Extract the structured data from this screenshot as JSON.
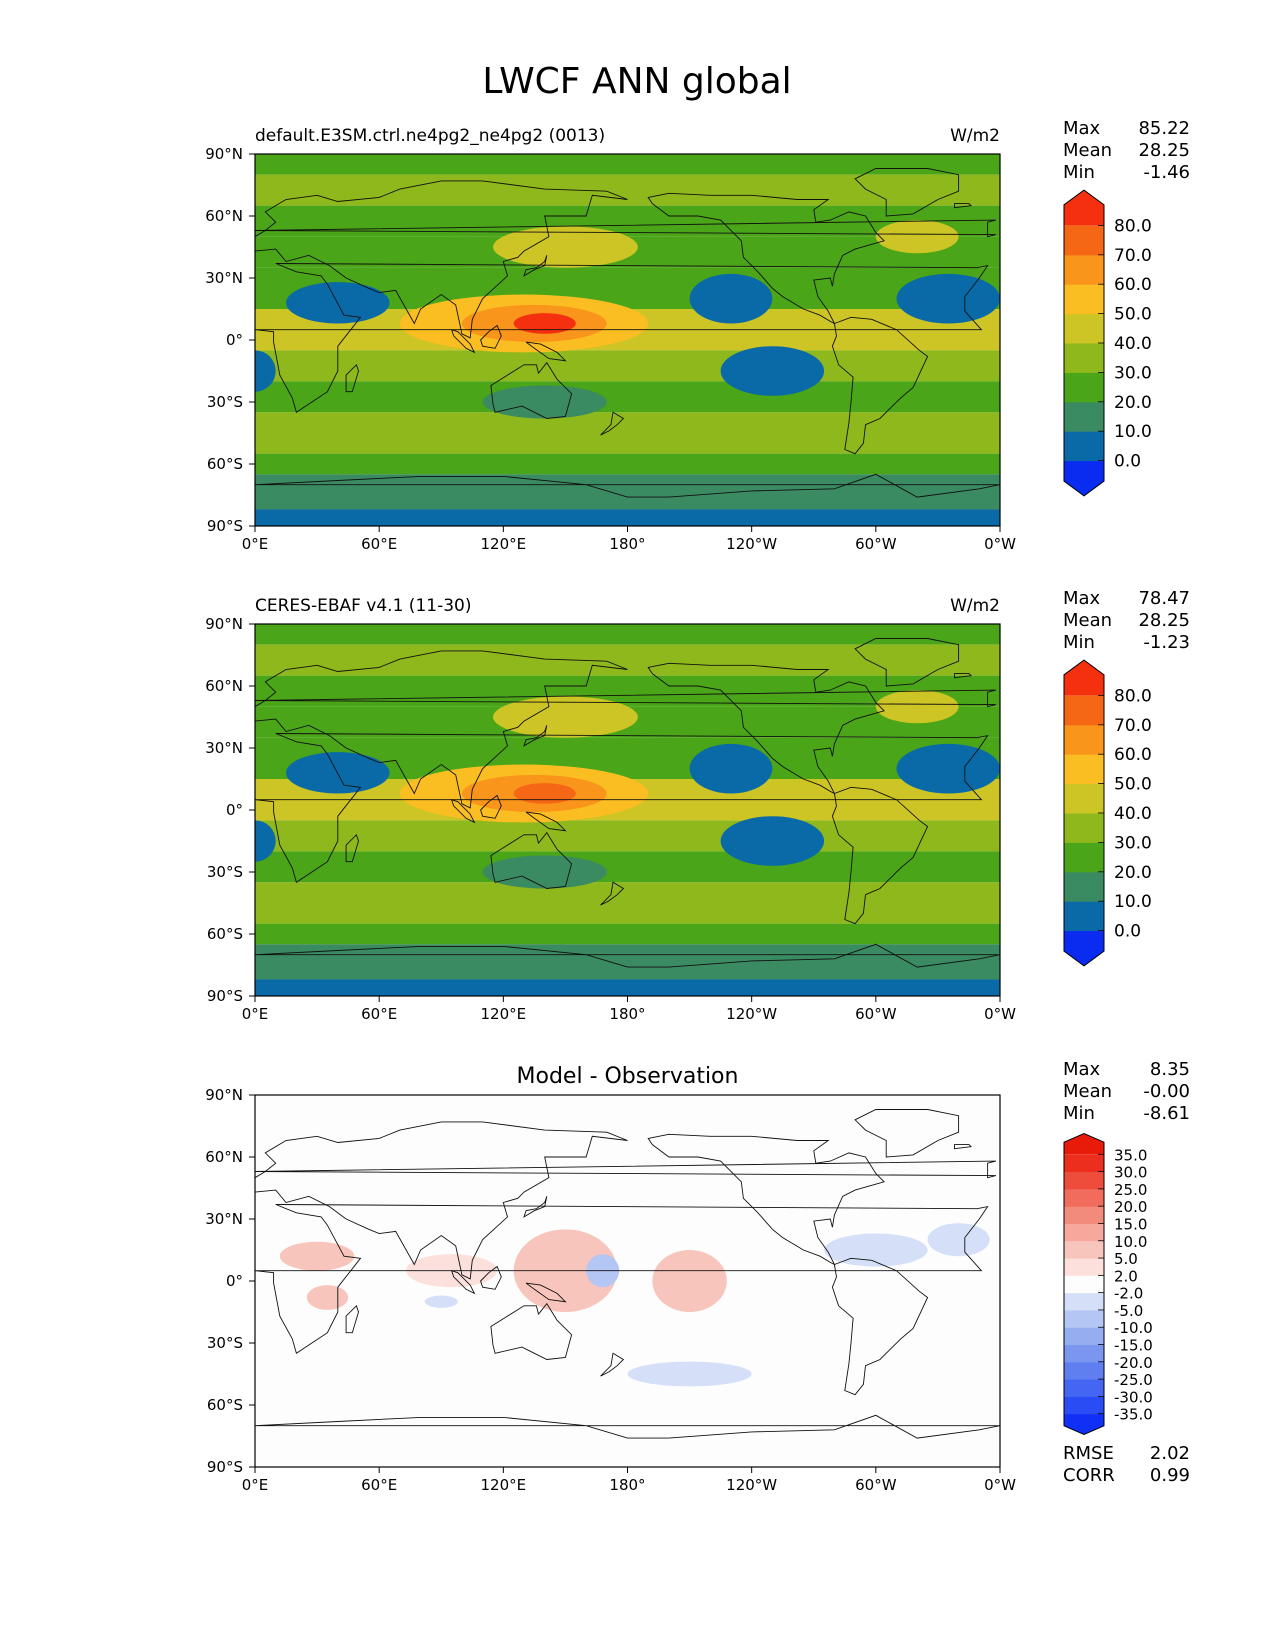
{
  "title": "LWCF ANN global",
  "chart_data": [
    {
      "type": "heatmap",
      "title": "default.E3SM.ctrl.ne4pg2_ne4pg2 (0013)",
      "units": "W/m2",
      "lon_ticks": [
        "0°E",
        "60°E",
        "120°E",
        "180°",
        "120°W",
        "60°W",
        "0°W"
      ],
      "lat_ticks": [
        "90°N",
        "60°N",
        "30°N",
        "0°",
        "30°S",
        "60°S",
        "90°S"
      ],
      "xlim": [
        0,
        360
      ],
      "ylim": [
        -90,
        90
      ],
      "stats": {
        "max_label": "Max",
        "max": "85.22",
        "mean_label": "Mean",
        "mean": "28.25",
        "min_label": "Min",
        "min": "-1.46"
      },
      "colorbar": {
        "levels": [
          "0.0",
          "10.0",
          "20.0",
          "30.0",
          "40.0",
          "50.0",
          "60.0",
          "70.0",
          "80.0"
        ],
        "colors": [
          "#0a2cf0",
          "#0a6aa8",
          "#3a8a62",
          "#4aa518",
          "#8fb81c",
          "#cdc425",
          "#fbbe22",
          "#f8951a",
          "#f56615",
          "#f5300f"
        ]
      }
    },
    {
      "type": "heatmap",
      "title": "CERES-EBAF v4.1 (11-30)",
      "units": "W/m2",
      "lon_ticks": [
        "0°E",
        "60°E",
        "120°E",
        "180°",
        "120°W",
        "60°W",
        "0°W"
      ],
      "lat_ticks": [
        "90°N",
        "60°N",
        "30°N",
        "0°",
        "30°S",
        "60°S",
        "90°S"
      ],
      "xlim": [
        0,
        360
      ],
      "ylim": [
        -90,
        90
      ],
      "stats": {
        "max_label": "Max",
        "max": "78.47",
        "mean_label": "Mean",
        "mean": "28.25",
        "min_label": "Min",
        "min": "-1.23"
      },
      "colorbar": {
        "levels": [
          "0.0",
          "10.0",
          "20.0",
          "30.0",
          "40.0",
          "50.0",
          "60.0",
          "70.0",
          "80.0"
        ],
        "colors": [
          "#0a2cf0",
          "#0a6aa8",
          "#3a8a62",
          "#4aa518",
          "#8fb81c",
          "#cdc425",
          "#fbbe22",
          "#f8951a",
          "#f56615",
          "#f5300f"
        ]
      }
    },
    {
      "type": "heatmap",
      "title": "Model - Observation",
      "units": "",
      "lon_ticks": [
        "0°E",
        "60°E",
        "120°E",
        "180°",
        "120°W",
        "60°W",
        "0°W"
      ],
      "lat_ticks": [
        "90°N",
        "60°N",
        "30°N",
        "0°",
        "30°S",
        "60°S",
        "90°S"
      ],
      "xlim": [
        0,
        360
      ],
      "ylim": [
        -90,
        90
      ],
      "stats": {
        "max_label": "Max",
        "max": "8.35",
        "mean_label": "Mean",
        "mean": "-0.00",
        "min_label": "Min",
        "min": "-8.61"
      },
      "metrics": {
        "rmse_label": "RMSE",
        "rmse": "2.02",
        "corr_label": "CORR",
        "corr": "0.99"
      },
      "colorbar": {
        "levels": [
          "-35.0",
          "-30.0",
          "-25.0",
          "-20.0",
          "-15.0",
          "-10.0",
          "-5.0",
          "-2.0",
          "2.0",
          "5.0",
          "10.0",
          "15.0",
          "20.0",
          "25.0",
          "30.0",
          "35.0"
        ],
        "colors": [
          "#1030f5",
          "#2a4cf4",
          "#4566f2",
          "#5f7ef0",
          "#7a96ef",
          "#95aef0",
          "#b4c6f4",
          "#d5e0f8",
          "#fdfdfd",
          "#fbe0dc",
          "#f8c5bc",
          "#f6a89c",
          "#f38b7c",
          "#f16c5c",
          "#ee4d3c",
          "#eb2e1e",
          "#e81a0a"
        ]
      }
    }
  ]
}
